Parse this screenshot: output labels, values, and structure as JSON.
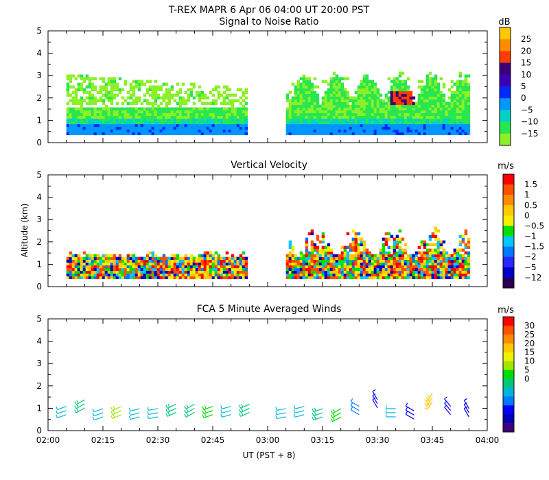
{
  "figure": {
    "title": "T-REX  MAPR  6 Apr 06  04:00 UT  20:00  PST",
    "xlabel": "UT  (PST + 8)"
  },
  "chart_data": [
    {
      "type": "heatmap",
      "title": "Signal to Noise Ratio",
      "ylabel": "",
      "xlim": [
        "02:00",
        "04:00"
      ],
      "ylim": [
        0,
        5
      ],
      "x_ticks": [
        "02:00",
        "02:15",
        "02:30",
        "02:45",
        "03:00",
        "03:15",
        "03:30",
        "03:45",
        "04:00"
      ],
      "y_ticks": [
        "0",
        "1",
        "2",
        "3",
        "4",
        "5"
      ],
      "data_gap": [
        "02:55",
        "03:05"
      ],
      "colorbar": {
        "unit": "dB",
        "labels": [
          "25",
          "20",
          "15",
          "10",
          "5",
          "0",
          "−5",
          "−10",
          "−15"
        ],
        "colors": [
          "#ffc800",
          "#ff8c00",
          "#ff3c00",
          "#3c0078",
          "#3c00b4",
          "#0028ff",
          "#0096ff",
          "#00d2c8",
          "#28e650",
          "#8cf028"
        ]
      }
    },
    {
      "type": "heatmap",
      "title": "Vertical Velocity",
      "ylabel": "Altitude  (km)",
      "xlim": [
        "02:00",
        "04:00"
      ],
      "ylim": [
        0,
        5
      ],
      "x_ticks": [
        "02:00",
        "02:15",
        "02:30",
        "02:45",
        "03:00",
        "03:15",
        "03:30",
        "03:45",
        "04:00"
      ],
      "y_ticks": [
        "0",
        "1",
        "2",
        "3",
        "4",
        "5"
      ],
      "data_gap": [
        "02:55",
        "03:05"
      ],
      "colorbar": {
        "unit": "m/s",
        "labels": [
          "1.5",
          "1",
          "0.5",
          "0",
          "−0.5",
          "−1",
          "−1.5",
          "−2",
          "−5",
          "−12"
        ],
        "colors": [
          "#ff0000",
          "#ff5000",
          "#ff8c00",
          "#ffc800",
          "#f0f000",
          "#00e000",
          "#00c8ff",
          "#0078ff",
          "#2828ff",
          "#0000c8",
          "#280050"
        ]
      }
    },
    {
      "type": "scatter",
      "title": "FCA 5 Minute Averaged Winds",
      "ylabel": "",
      "xlim": [
        "02:00",
        "04:00"
      ],
      "ylim": [
        0,
        5
      ],
      "x_ticks": [
        "02:00",
        "02:15",
        "02:30",
        "02:45",
        "03:00",
        "03:15",
        "03:30",
        "03:45",
        "04:00"
      ],
      "y_ticks": [
        "0",
        "1",
        "2",
        "3",
        "4",
        "5"
      ],
      "colorbar": {
        "unit": "m/s",
        "labels": [
          "30",
          "25",
          "20",
          "15",
          "10",
          "5",
          "0"
        ],
        "colors": [
          "#ff0000",
          "#ff5000",
          "#ff8c00",
          "#ffc800",
          "#f0f000",
          "#a0e600",
          "#00dc00",
          "#00c878",
          "#00b4dc",
          "#0078ff",
          "#0000ff",
          "#0000b4",
          "#3c0078"
        ]
      },
      "barbs": [
        {
          "time": "02:05",
          "alt": 0.9,
          "speed": 9,
          "dir": 250
        },
        {
          "time": "02:10",
          "alt": 1.2,
          "speed": 12,
          "dir": 240
        },
        {
          "time": "02:15",
          "alt": 0.8,
          "speed": 10,
          "dir": 250
        },
        {
          "time": "02:20",
          "alt": 0.9,
          "speed": 18,
          "dir": 245
        },
        {
          "time": "02:25",
          "alt": 0.8,
          "speed": 10,
          "dir": 255
        },
        {
          "time": "02:30",
          "alt": 0.8,
          "speed": 10,
          "dir": 260
        },
        {
          "time": "02:35",
          "alt": 1.0,
          "speed": 12,
          "dir": 245
        },
        {
          "time": "02:40",
          "alt": 1.0,
          "speed": 13,
          "dir": 240
        },
        {
          "time": "02:45",
          "alt": 0.9,
          "speed": 14,
          "dir": 250
        },
        {
          "time": "02:50",
          "alt": 0.9,
          "speed": 11,
          "dir": 255
        },
        {
          "time": "02:55",
          "alt": 1.0,
          "speed": 13,
          "dir": 245
        },
        {
          "time": "03:05",
          "alt": 0.8,
          "speed": 10,
          "dir": 260
        },
        {
          "time": "03:10",
          "alt": 0.9,
          "speed": 11,
          "dir": 255
        },
        {
          "time": "03:15",
          "alt": 0.8,
          "speed": 12,
          "dir": 250
        },
        {
          "time": "03:20",
          "alt": 0.8,
          "speed": 16,
          "dir": 240
        },
        {
          "time": "03:25",
          "alt": 0.9,
          "speed": 8,
          "dir": 300
        },
        {
          "time": "03:30",
          "alt": 1.2,
          "speed": 6,
          "dir": 330
        },
        {
          "time": "03:35",
          "alt": 0.8,
          "speed": 9,
          "dir": 270
        },
        {
          "time": "03:40",
          "alt": 0.7,
          "speed": 5,
          "dir": 300
        },
        {
          "time": "03:45",
          "alt": 1.5,
          "speed": 22,
          "dir": 210
        },
        {
          "time": "03:50",
          "alt": 0.9,
          "speed": 4,
          "dir": 320
        },
        {
          "time": "03:55",
          "alt": 0.8,
          "speed": 6,
          "dir": 330
        }
      ]
    }
  ]
}
